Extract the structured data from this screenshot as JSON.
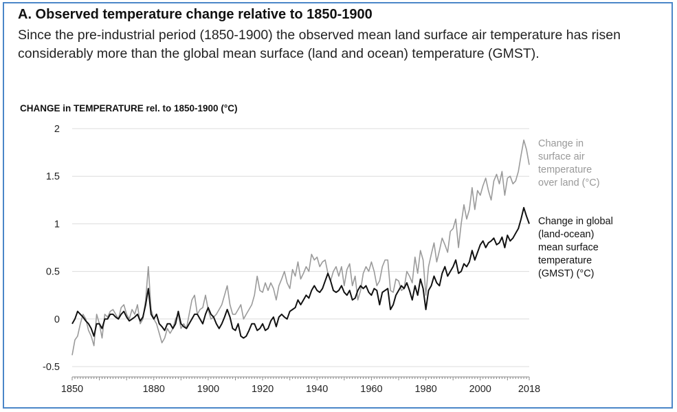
{
  "figure": {
    "title": "A. Observed temperature change relative to 1850-1900",
    "subtitle": "Since the pre-industrial period (1850-1900) the observed mean land surface air temperature has risen considerably more than the global mean surface (land and ocean) temperature (GMST)."
  },
  "colors": {
    "land": "#9a9a9a",
    "gmst": "#111111",
    "grid": "#dcdcdc",
    "border": "#4a86c8"
  },
  "chart_data": {
    "type": "line",
    "title": "",
    "ylabel": "CHANGE in TEMPERATURE rel. to 1850-1900 (°C)",
    "xlabel": "",
    "ylim": [
      -0.5,
      2
    ],
    "xlim": [
      1850,
      2018
    ],
    "yticks": [
      "2",
      "1.5",
      "1",
      "0.5",
      "0",
      "-0.5"
    ],
    "ytick_values": [
      2,
      1.5,
      1,
      0.5,
      0,
      -0.5
    ],
    "xticks": [
      "1850",
      "1880",
      "1900",
      "1920",
      "1940",
      "1960",
      "1980",
      "2000",
      "2018"
    ],
    "xtick_values": [
      1850,
      1880,
      1900,
      1920,
      1940,
      1960,
      1980,
      2000,
      2018
    ],
    "grid": true,
    "legend_placement": "right",
    "series": [
      {
        "key": "land",
        "name": "Change in surface air temperature over land (°C)",
        "name_lines": [
          "Change in",
          "surface air",
          "temperature",
          "over land (°C)"
        ],
        "start_year": 1850,
        "values": [
          -0.38,
          -0.22,
          -0.18,
          -0.05,
          0.05,
          0.0,
          -0.12,
          -0.18,
          -0.28,
          0.05,
          -0.05,
          -0.2,
          0.05,
          0.02,
          0.08,
          0.1,
          0.05,
          0.0,
          0.12,
          0.15,
          0.05,
          0.0,
          0.1,
          0.05,
          0.15,
          -0.05,
          0.0,
          0.2,
          0.55,
          0.1,
          0.0,
          -0.05,
          -0.15,
          -0.25,
          -0.2,
          -0.1,
          -0.15,
          -0.1,
          0.0,
          0.05,
          -0.1,
          -0.05,
          -0.1,
          0.05,
          0.2,
          0.25,
          0.05,
          0.1,
          0.12,
          0.25,
          0.1,
          0.0,
          0.02,
          0.05,
          0.1,
          0.15,
          0.25,
          0.35,
          0.15,
          0.05,
          0.05,
          0.1,
          0.15,
          0.0,
          0.05,
          0.1,
          0.15,
          0.25,
          0.45,
          0.3,
          0.28,
          0.38,
          0.3,
          0.38,
          0.32,
          0.2,
          0.35,
          0.42,
          0.5,
          0.38,
          0.32,
          0.52,
          0.45,
          0.6,
          0.42,
          0.48,
          0.55,
          0.5,
          0.68,
          0.62,
          0.65,
          0.55,
          0.6,
          0.62,
          0.48,
          0.4,
          0.5,
          0.55,
          0.45,
          0.55,
          0.35,
          0.52,
          0.58,
          0.35,
          0.45,
          0.2,
          0.3,
          0.48,
          0.55,
          0.5,
          0.6,
          0.5,
          0.35,
          0.4,
          0.55,
          0.62,
          0.62,
          0.3,
          0.28,
          0.42,
          0.4,
          0.3,
          0.32,
          0.5,
          0.45,
          0.38,
          0.65,
          0.48,
          0.72,
          0.62,
          0.25,
          0.55,
          0.68,
          0.8,
          0.6,
          0.72,
          0.85,
          0.78,
          0.7,
          0.92,
          0.95,
          1.05,
          0.75,
          1.0,
          1.2,
          1.05,
          1.15,
          1.38,
          1.15,
          1.35,
          1.3,
          1.4,
          1.48,
          1.35,
          1.25,
          1.45,
          1.52,
          1.42,
          1.55,
          1.3,
          1.48,
          1.5,
          1.42,
          1.45,
          1.55,
          1.72,
          1.88,
          1.78,
          1.62
        ]
      },
      {
        "key": "gmst",
        "name": "Change in global (land-ocean) mean surface temperature (GMST) (°C)",
        "name_lines": [
          "Change in global",
          "(land-ocean)",
          "mean surface",
          "temperature",
          "(GMST) (°C)"
        ],
        "start_year": 1850,
        "values": [
          -0.05,
          0.0,
          0.08,
          0.05,
          0.02,
          -0.02,
          -0.05,
          -0.1,
          -0.18,
          -0.05,
          -0.05,
          -0.1,
          0.0,
          0.0,
          0.05,
          0.05,
          0.02,
          0.0,
          0.05,
          0.08,
          0.02,
          -0.02,
          0.0,
          0.02,
          0.05,
          -0.02,
          0.02,
          0.15,
          0.32,
          0.05,
          0.0,
          0.05,
          -0.05,
          -0.08,
          -0.12,
          -0.05,
          -0.05,
          -0.1,
          -0.05,
          0.08,
          -0.05,
          -0.08,
          -0.1,
          -0.05,
          0.0,
          0.05,
          0.05,
          0.0,
          -0.05,
          0.05,
          0.12,
          0.05,
          0.02,
          -0.05,
          -0.1,
          -0.05,
          0.02,
          0.1,
          0.02,
          -0.1,
          -0.12,
          -0.05,
          -0.18,
          -0.2,
          -0.18,
          -0.12,
          -0.05,
          -0.05,
          -0.12,
          -0.1,
          -0.05,
          -0.12,
          -0.1,
          -0.02,
          0.02,
          -0.08,
          0.02,
          0.05,
          0.02,
          0.0,
          0.08,
          0.1,
          0.12,
          0.2,
          0.15,
          0.2,
          0.25,
          0.22,
          0.3,
          0.35,
          0.3,
          0.28,
          0.32,
          0.4,
          0.48,
          0.4,
          0.3,
          0.28,
          0.3,
          0.35,
          0.28,
          0.25,
          0.3,
          0.2,
          0.22,
          0.3,
          0.35,
          0.32,
          0.35,
          0.28,
          0.25,
          0.32,
          0.3,
          0.15,
          0.28,
          0.3,
          0.32,
          0.1,
          0.15,
          0.25,
          0.3,
          0.35,
          0.32,
          0.38,
          0.3,
          0.2,
          0.35,
          0.25,
          0.42,
          0.32,
          0.1,
          0.3,
          0.35,
          0.45,
          0.38,
          0.35,
          0.48,
          0.55,
          0.45,
          0.5,
          0.55,
          0.62,
          0.48,
          0.5,
          0.58,
          0.55,
          0.6,
          0.72,
          0.62,
          0.7,
          0.78,
          0.82,
          0.75,
          0.8,
          0.82,
          0.85,
          0.78,
          0.8,
          0.86,
          0.75,
          0.88,
          0.82,
          0.85,
          0.9,
          0.95,
          1.05,
          1.17,
          1.08,
          1.0
        ]
      }
    ]
  }
}
